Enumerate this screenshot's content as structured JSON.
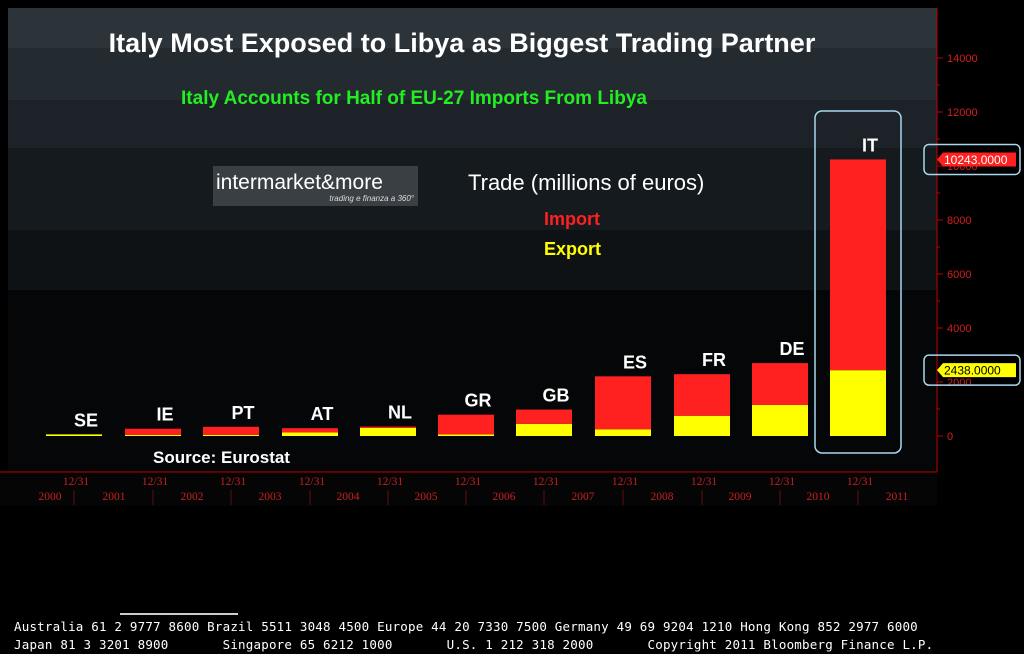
{
  "chart_data": {
    "type": "bar",
    "stacked": true,
    "title": "Italy Most Exposed to Libya as Biggest Trading Partner",
    "subtitle": "Italy Accounts for Half of EU-27 Imports From Libya",
    "legend_title": "Trade (millions of euros)",
    "source": "Source: Eurostat",
    "categories": [
      "SE",
      "IE",
      "PT",
      "AT",
      "NL",
      "GR",
      "GB",
      "ES",
      "FR",
      "DE",
      "IT"
    ],
    "series": [
      {
        "name": "Export",
        "color": "#ffff00",
        "values": [
          60,
          40,
          40,
          130,
          300,
          60,
          450,
          250,
          750,
          1150,
          2438
        ]
      },
      {
        "name": "Import",
        "color": "#ff2020",
        "values": [
          0,
          230,
          300,
          160,
          50,
          730,
          530,
          1960,
          1540,
          1550,
          7805
        ]
      }
    ],
    "legend_entries": [
      {
        "label": "Import",
        "color": "#ff2020"
      },
      {
        "label": "Export",
        "color": "#ffff00"
      }
    ],
    "ylim": [
      0,
      16000
    ],
    "y_ticks": [
      0,
      2000,
      4000,
      6000,
      8000,
      10000,
      12000,
      14000
    ],
    "y_axis_side": "right",
    "x_date_labels": [
      "12/31",
      "12/31",
      "12/31",
      "12/31",
      "12/31",
      "12/31",
      "12/31",
      "12/31",
      "12/31",
      "12/31",
      "12/31"
    ],
    "x_year_labels": [
      "2000",
      "2001",
      "2002",
      "2003",
      "2004",
      "2005",
      "2006",
      "2007",
      "2008",
      "2009",
      "2010",
      "2011"
    ],
    "callouts": [
      {
        "label": "10243.0000",
        "value": 10243,
        "color": "#ff2020",
        "text_color": "#ffffff"
      },
      {
        "label": "2438.0000",
        "value": 2438,
        "color": "#ffff00",
        "text_color": "#000000"
      }
    ],
    "highlight_category": "IT"
  },
  "logo": {
    "name": "intermarket&more",
    "tagline": "trading e finanza a 360°"
  },
  "footer": {
    "line1": "Australia 61 2 9777 8600 Brazil 5511 3048 4500 Europe 44 20 7330 7500 Germany 49 69 9204 1210 Hong Kong 852 2977 6000",
    "line2": "Japan 81 3 3201 8900       Singapore 65 6212 1000       U.S. 1 212 318 2000       Copyright 2011 Bloomberg Finance L.P."
  }
}
